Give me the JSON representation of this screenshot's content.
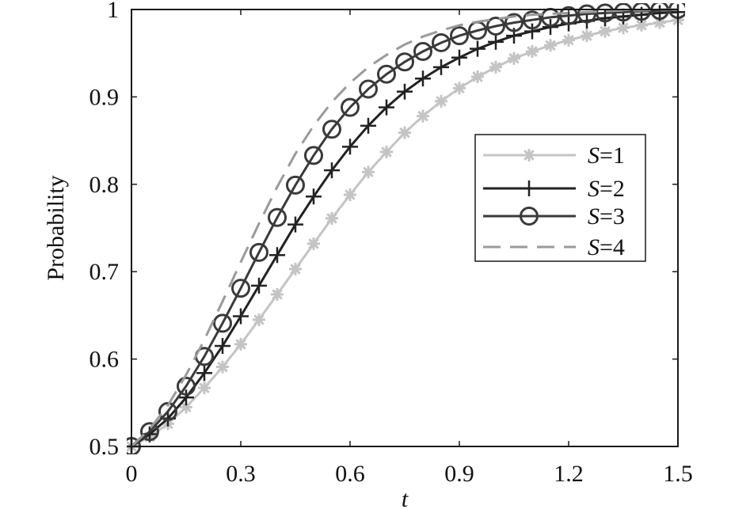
{
  "chart_data": {
    "type": "line",
    "title": "",
    "xlabel": "t",
    "ylabel": "Probability",
    "xlim": [
      0,
      1.5
    ],
    "ylim": [
      0.5,
      1.0
    ],
    "xticks": [
      0,
      0.3,
      0.6,
      0.9,
      1.2,
      1.5
    ],
    "xtick_labels": [
      "0",
      "0.3",
      "0.6",
      "0.9",
      "1.2",
      "1.5"
    ],
    "yticks": [
      0.5,
      0.6,
      0.7,
      0.8,
      0.9,
      1.0
    ],
    "ytick_labels": [
      "0.5",
      "0.6",
      "0.7",
      "0.8",
      "0.9",
      "1"
    ],
    "grid": false,
    "legend_position": "right",
    "x": [
      0,
      0.05,
      0.1,
      0.15,
      0.2,
      0.25,
      0.3,
      0.35,
      0.4,
      0.45,
      0.5,
      0.55,
      0.6,
      0.65,
      0.7,
      0.75,
      0.8,
      0.85,
      0.9,
      0.95,
      1.0,
      1.05,
      1.1,
      1.15,
      1.2,
      1.25,
      1.3,
      1.35,
      1.4,
      1.45,
      1.5
    ],
    "series": [
      {
        "name": "S=1",
        "legend_var": "S",
        "legend_rest": "=1",
        "marker": "asterisk",
        "color": "#c4c4c4",
        "dash": false,
        "values": [
          0.5,
          0.511,
          0.526,
          0.545,
          0.567,
          0.591,
          0.617,
          0.645,
          0.674,
          0.703,
          0.732,
          0.761,
          0.788,
          0.814,
          0.837,
          0.859,
          0.878,
          0.895,
          0.91,
          0.923,
          0.934,
          0.944,
          0.952,
          0.959,
          0.965,
          0.97,
          0.975,
          0.979,
          0.982,
          0.985,
          0.988
        ]
      },
      {
        "name": "S=2",
        "legend_var": "S",
        "legend_rest": "=2",
        "marker": "plus",
        "color": "#222222",
        "dash": false,
        "values": [
          0.5,
          0.514,
          0.532,
          0.556,
          0.584,
          0.615,
          0.649,
          0.684,
          0.719,
          0.754,
          0.786,
          0.816,
          0.843,
          0.867,
          0.888,
          0.906,
          0.921,
          0.934,
          0.945,
          0.955,
          0.963,
          0.97,
          0.975,
          0.98,
          0.984,
          0.987,
          0.99,
          0.992,
          0.994,
          0.996,
          0.997
        ]
      },
      {
        "name": "S=3",
        "legend_var": "S",
        "legend_rest": "=3",
        "marker": "circle",
        "color": "#3a3a3a",
        "dash": false,
        "values": [
          0.5,
          0.517,
          0.54,
          0.569,
          0.603,
          0.641,
          0.681,
          0.722,
          0.762,
          0.799,
          0.833,
          0.863,
          0.888,
          0.909,
          0.926,
          0.94,
          0.952,
          0.962,
          0.97,
          0.976,
          0.981,
          0.985,
          0.988,
          0.991,
          0.993,
          0.995,
          0.996,
          0.997,
          0.998,
          0.999,
          1.0
        ]
      },
      {
        "name": "S=4",
        "legend_var": "S",
        "legend_rest": "=4",
        "marker": "none",
        "color": "#9a9a9a",
        "dash": true,
        "values": [
          0.5,
          0.52,
          0.547,
          0.582,
          0.622,
          0.666,
          0.711,
          0.755,
          0.797,
          0.835,
          0.867,
          0.894,
          0.916,
          0.934,
          0.948,
          0.96,
          0.969,
          0.976,
          0.982,
          0.986,
          0.989,
          0.992,
          0.994,
          0.995,
          0.996,
          0.997,
          0.998,
          0.999,
          0.999,
          1.0,
          1.0
        ]
      }
    ]
  }
}
